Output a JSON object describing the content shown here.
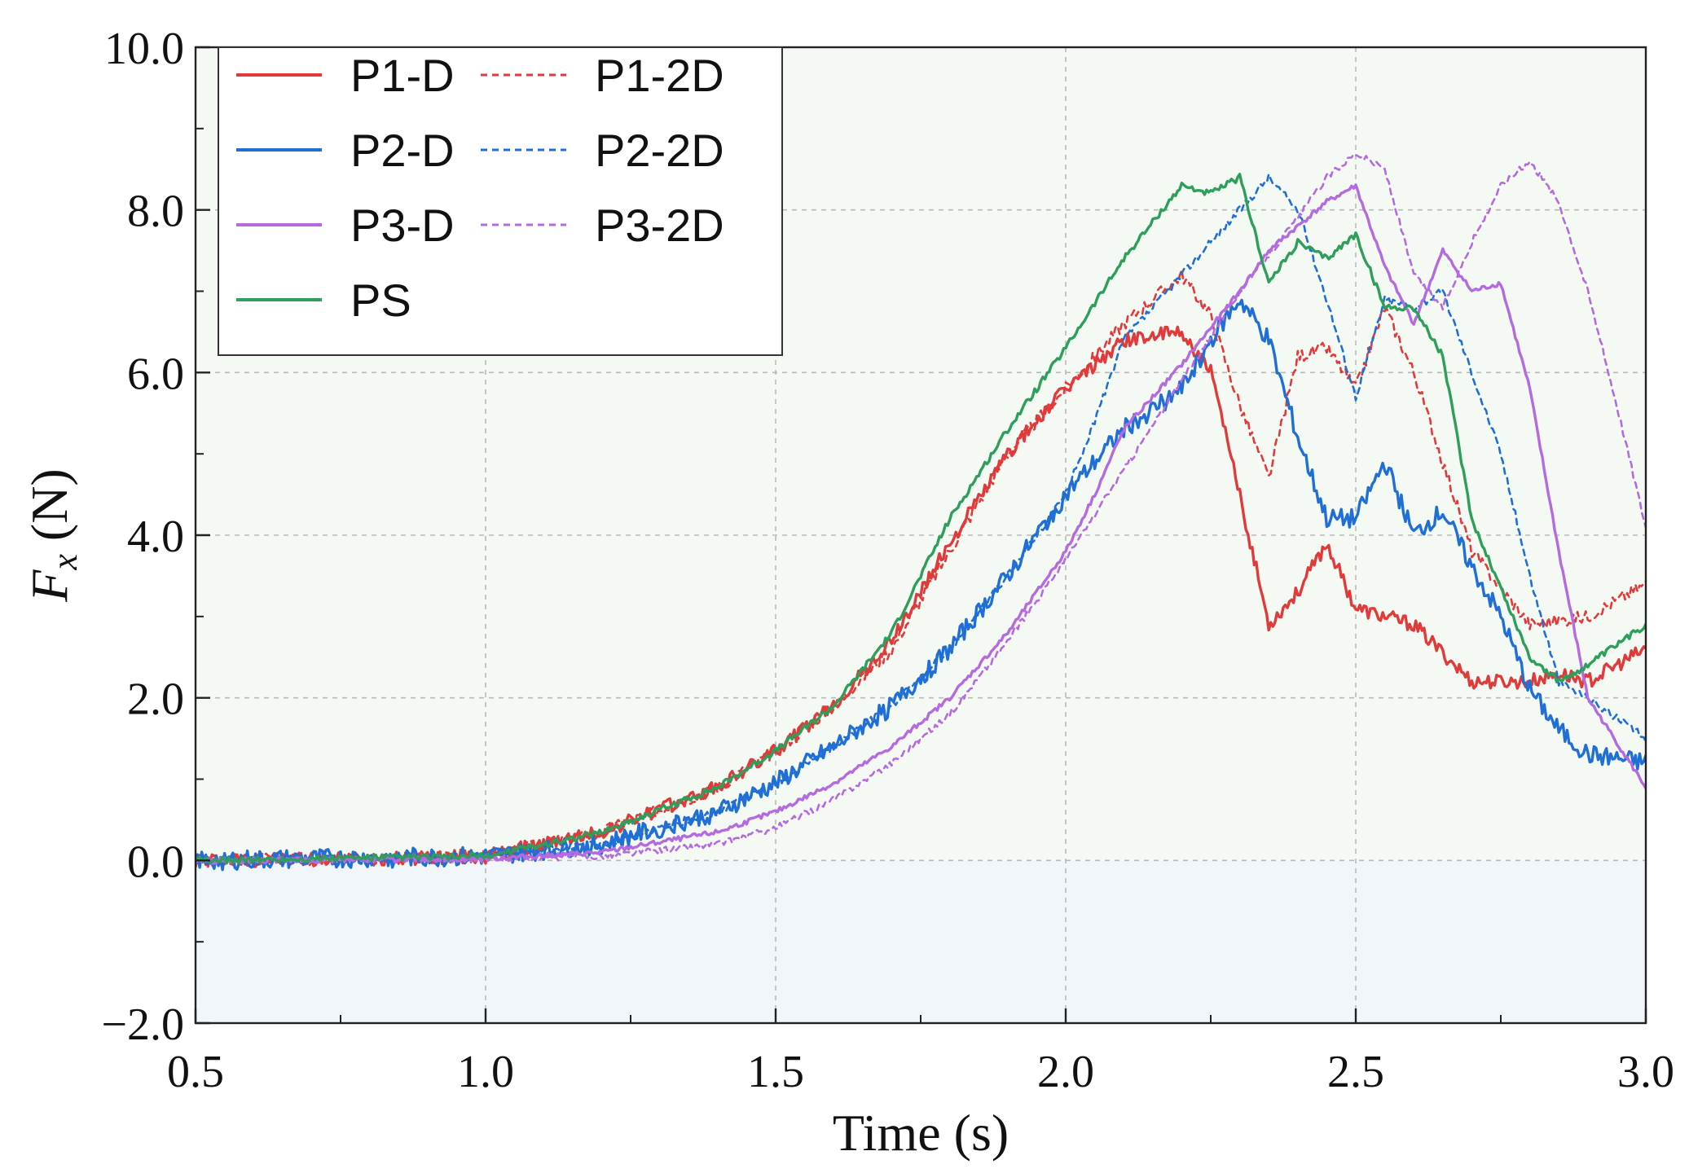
{
  "chart_data": {
    "type": "line",
    "xlabel": "Time (s)",
    "ylabel_main": "F",
    "ylabel_sub": "x",
    "ylabel_unit": " (N)",
    "xlim": [
      0.5,
      3.0
    ],
    "ylim": [
      -2.0,
      10.0
    ],
    "xticks": [
      0.5,
      1.0,
      1.5,
      2.0,
      2.5,
      3.0
    ],
    "xtick_labels": [
      "0.5",
      "1.0",
      "1.5",
      "2.0",
      "2.5",
      "3.0"
    ],
    "yticks": [
      -2.0,
      0.0,
      2.0,
      4.0,
      6.0,
      8.0,
      10.0
    ],
    "ytick_labels": [
      "−2.0",
      "0.0",
      "2.0",
      "4.0",
      "6.0",
      "8.0",
      "10.0"
    ],
    "grid": true,
    "legend_position": "top-left",
    "series": [
      {
        "name": "P1-D",
        "color": "#e03a3a",
        "style": "solid",
        "noise": 0.09,
        "x": [
          0.5,
          1.0,
          1.2,
          1.4,
          1.5,
          1.6,
          1.7,
          1.8,
          1.9,
          2.0,
          2.1,
          2.2,
          2.25,
          2.3,
          2.35,
          2.4,
          2.45,
          2.5,
          2.6,
          2.7,
          2.8,
          2.85,
          2.9,
          3.0
        ],
        "y": [
          0.0,
          0.05,
          0.35,
          0.9,
          1.35,
          1.9,
          2.7,
          3.9,
          5.0,
          5.8,
          6.4,
          6.5,
          6.0,
          4.5,
          2.9,
          3.3,
          3.9,
          3.1,
          2.9,
          2.2,
          2.2,
          2.3,
          2.2,
          2.6
        ]
      },
      {
        "name": "P1-2D",
        "color": "#e03a3a",
        "style": "dashed",
        "noise": 0.08,
        "x": [
          0.5,
          1.0,
          1.2,
          1.4,
          1.5,
          1.6,
          1.7,
          1.8,
          1.9,
          2.0,
          2.1,
          2.2,
          2.25,
          2.3,
          2.35,
          2.4,
          2.45,
          2.5,
          2.55,
          2.6,
          2.7,
          2.8,
          2.9,
          3.0
        ],
        "y": [
          0.0,
          0.05,
          0.35,
          0.9,
          1.35,
          1.9,
          2.6,
          3.8,
          5.0,
          5.8,
          6.6,
          7.2,
          6.7,
          5.6,
          4.7,
          6.2,
          6.3,
          5.8,
          6.8,
          6.0,
          3.8,
          2.9,
          3.0,
          3.4
        ]
      },
      {
        "name": "P2-D",
        "color": "#1f6fd6",
        "style": "solid",
        "noise": 0.12,
        "x": [
          0.5,
          1.0,
          1.2,
          1.4,
          1.5,
          1.6,
          1.7,
          1.8,
          1.9,
          2.0,
          2.1,
          2.2,
          2.25,
          2.3,
          2.35,
          2.4,
          2.45,
          2.5,
          2.55,
          2.6,
          2.65,
          2.7,
          2.75,
          2.8,
          2.85,
          2.9,
          3.0
        ],
        "y": [
          0.0,
          0.05,
          0.2,
          0.6,
          0.95,
          1.4,
          1.9,
          2.6,
          3.5,
          4.5,
          5.3,
          5.8,
          6.4,
          6.9,
          6.4,
          5.2,
          4.2,
          4.2,
          4.9,
          4.0,
          4.3,
          3.6,
          3.0,
          2.1,
          1.6,
          1.3,
          1.2
        ]
      },
      {
        "name": "P2-2D",
        "color": "#1f6fd6",
        "style": "dashed",
        "noise": 0.05,
        "x": [
          0.5,
          1.0,
          1.2,
          1.4,
          1.5,
          1.6,
          1.7,
          1.8,
          1.9,
          2.0,
          2.05,
          2.1,
          2.15,
          2.2,
          2.25,
          2.3,
          2.35,
          2.4,
          2.45,
          2.5,
          2.55,
          2.6,
          2.65,
          2.7,
          2.75,
          2.8,
          2.85,
          2.9,
          3.0
        ],
        "y": [
          0.0,
          0.05,
          0.2,
          0.6,
          0.95,
          1.4,
          1.9,
          2.6,
          3.5,
          4.5,
          5.4,
          6.4,
          6.8,
          7.2,
          7.6,
          8.0,
          8.4,
          8.0,
          6.9,
          5.7,
          6.9,
          6.8,
          7.0,
          6.0,
          5.0,
          3.5,
          2.2,
          2.0,
          1.5
        ]
      },
      {
        "name": "P3-D",
        "color": "#b46be0",
        "style": "solid",
        "noise": 0.03,
        "x": [
          0.5,
          1.0,
          1.2,
          1.4,
          1.5,
          1.6,
          1.7,
          1.8,
          1.9,
          2.0,
          2.05,
          2.1,
          2.2,
          2.3,
          2.35,
          2.4,
          2.45,
          2.5,
          2.55,
          2.6,
          2.65,
          2.7,
          2.75,
          2.8,
          2.85,
          2.9,
          3.0
        ],
        "y": [
          0.0,
          0.02,
          0.1,
          0.35,
          0.6,
          0.95,
          1.4,
          2.0,
          2.8,
          3.8,
          4.5,
          5.3,
          6.1,
          7.0,
          7.5,
          7.8,
          8.1,
          8.3,
          7.3,
          6.6,
          7.5,
          7.0,
          7.1,
          5.8,
          3.8,
          2.0,
          0.9
        ]
      },
      {
        "name": "P3-2D",
        "color": "#b46be0",
        "style": "dashed",
        "noise": 0.04,
        "x": [
          0.5,
          1.0,
          1.2,
          1.4,
          1.5,
          1.6,
          1.7,
          1.8,
          1.9,
          2.0,
          2.1,
          2.2,
          2.3,
          2.4,
          2.45,
          2.5,
          2.55,
          2.6,
          2.65,
          2.7,
          2.75,
          2.8,
          2.85,
          2.9,
          2.95,
          3.0
        ],
        "y": [
          0.0,
          0.02,
          0.05,
          0.2,
          0.4,
          0.75,
          1.2,
          1.8,
          2.7,
          3.7,
          4.8,
          5.9,
          7.0,
          7.9,
          8.4,
          8.7,
          8.5,
          7.2,
          6.8,
          7.6,
          8.3,
          8.6,
          8.1,
          7.0,
          5.6,
          4.1
        ]
      },
      {
        "name": "PS",
        "color": "#2e9e5b",
        "style": "solid",
        "noise": 0.04,
        "x": [
          0.5,
          1.0,
          1.2,
          1.4,
          1.5,
          1.6,
          1.7,
          1.8,
          1.9,
          2.0,
          2.1,
          2.2,
          2.25,
          2.3,
          2.35,
          2.4,
          2.45,
          2.5,
          2.55,
          2.6,
          2.65,
          2.7,
          2.8,
          2.85,
          2.9,
          3.0
        ],
        "y": [
          0.0,
          0.05,
          0.35,
          0.9,
          1.35,
          1.9,
          2.8,
          4.2,
          5.3,
          6.3,
          7.4,
          8.3,
          8.2,
          8.4,
          7.1,
          7.6,
          7.4,
          7.7,
          6.8,
          6.8,
          6.2,
          4.2,
          2.5,
          2.2,
          2.4,
          2.9
        ]
      }
    ]
  }
}
